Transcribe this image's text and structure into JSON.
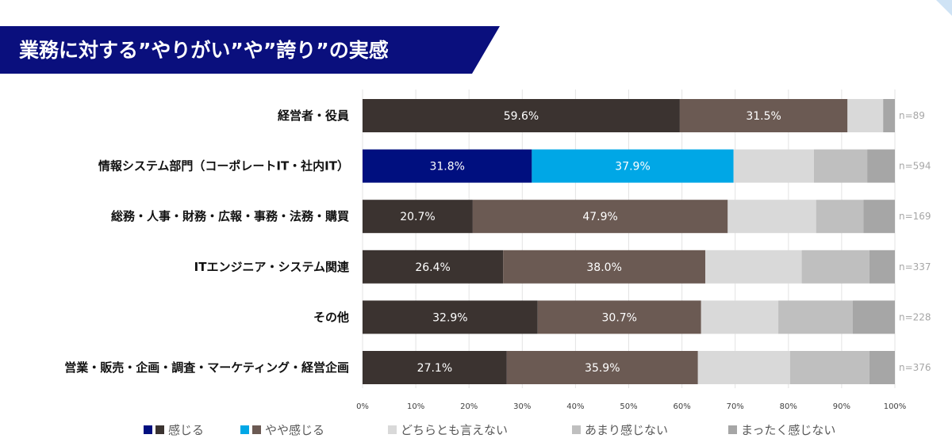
{
  "header": {
    "title": "業務に対する”やりがい”や”誇り”の実感",
    "banner_color": "#0a0f7d"
  },
  "chart_data": {
    "type": "bar",
    "orientation": "horizontal",
    "stacked": true,
    "title": "業務に対する”やりがい”や”誇り”の実感",
    "categories": [
      "経営者・役員",
      "情報システム部門（コーポレートIT・社内IT）",
      "総務・人事・財務・広報・事務・法務・購買",
      "ITエンジニア・システム関連",
      "その他",
      "営業・販売・企画・調査・マーケティング・経営企画"
    ],
    "n_labels": [
      "n=89",
      "n=594",
      "n=169",
      "n=337",
      "n=228",
      "n=376"
    ],
    "highlight_index": 1,
    "series": [
      {
        "name": "感じる",
        "values": [
          59.6,
          31.8,
          20.7,
          26.4,
          32.9,
          27.1
        ],
        "labels": [
          "59.6%",
          "31.8%",
          "20.7%",
          "26.4%",
          "32.9%",
          "27.1%"
        ],
        "color": "#3b3330",
        "highlight_color": "#000f7f"
      },
      {
        "name": "やや感じる",
        "values": [
          31.5,
          37.9,
          47.9,
          38.0,
          30.7,
          35.9
        ],
        "labels": [
          "31.5%",
          "37.9%",
          "47.9%",
          "38.0%",
          "30.7%",
          "35.9%"
        ],
        "color": "#6b5a53",
        "highlight_color": "#00a7e6"
      },
      {
        "name": "どちらとも言えない",
        "values": [
          6.7,
          15.1,
          16.6,
          18.1,
          14.5,
          17.3
        ],
        "color": "#d9d9d9"
      },
      {
        "name": "あまり感じない",
        "values": [
          0.0,
          10.0,
          8.9,
          12.7,
          14.0,
          14.9
        ],
        "color": "#bfbfbf"
      },
      {
        "name": "まったく感じない",
        "values": [
          2.2,
          5.2,
          5.9,
          4.8,
          7.9,
          4.8
        ],
        "color": "#a6a6a6"
      }
    ],
    "xlim": [
      0,
      100
    ],
    "xticks": [
      "0%",
      "10%",
      "20%",
      "30%",
      "40%",
      "50%",
      "60%",
      "70%",
      "80%",
      "90%",
      "100%"
    ],
    "grid": true,
    "legend_position": "bottom",
    "legend": [
      {
        "label": "感じる",
        "swatches": [
          "#000f7f",
          "#3b3330"
        ]
      },
      {
        "label": "やや感じる",
        "swatches": [
          "#00a7e6",
          "#6b5a53"
        ]
      },
      {
        "label": "どちらとも言えない",
        "swatches": [
          "#d9d9d9"
        ]
      },
      {
        "label": "あまり感じない",
        "swatches": [
          "#bfbfbf"
        ]
      },
      {
        "label": "まったく感じない",
        "swatches": [
          "#a6a6a6"
        ]
      }
    ]
  }
}
